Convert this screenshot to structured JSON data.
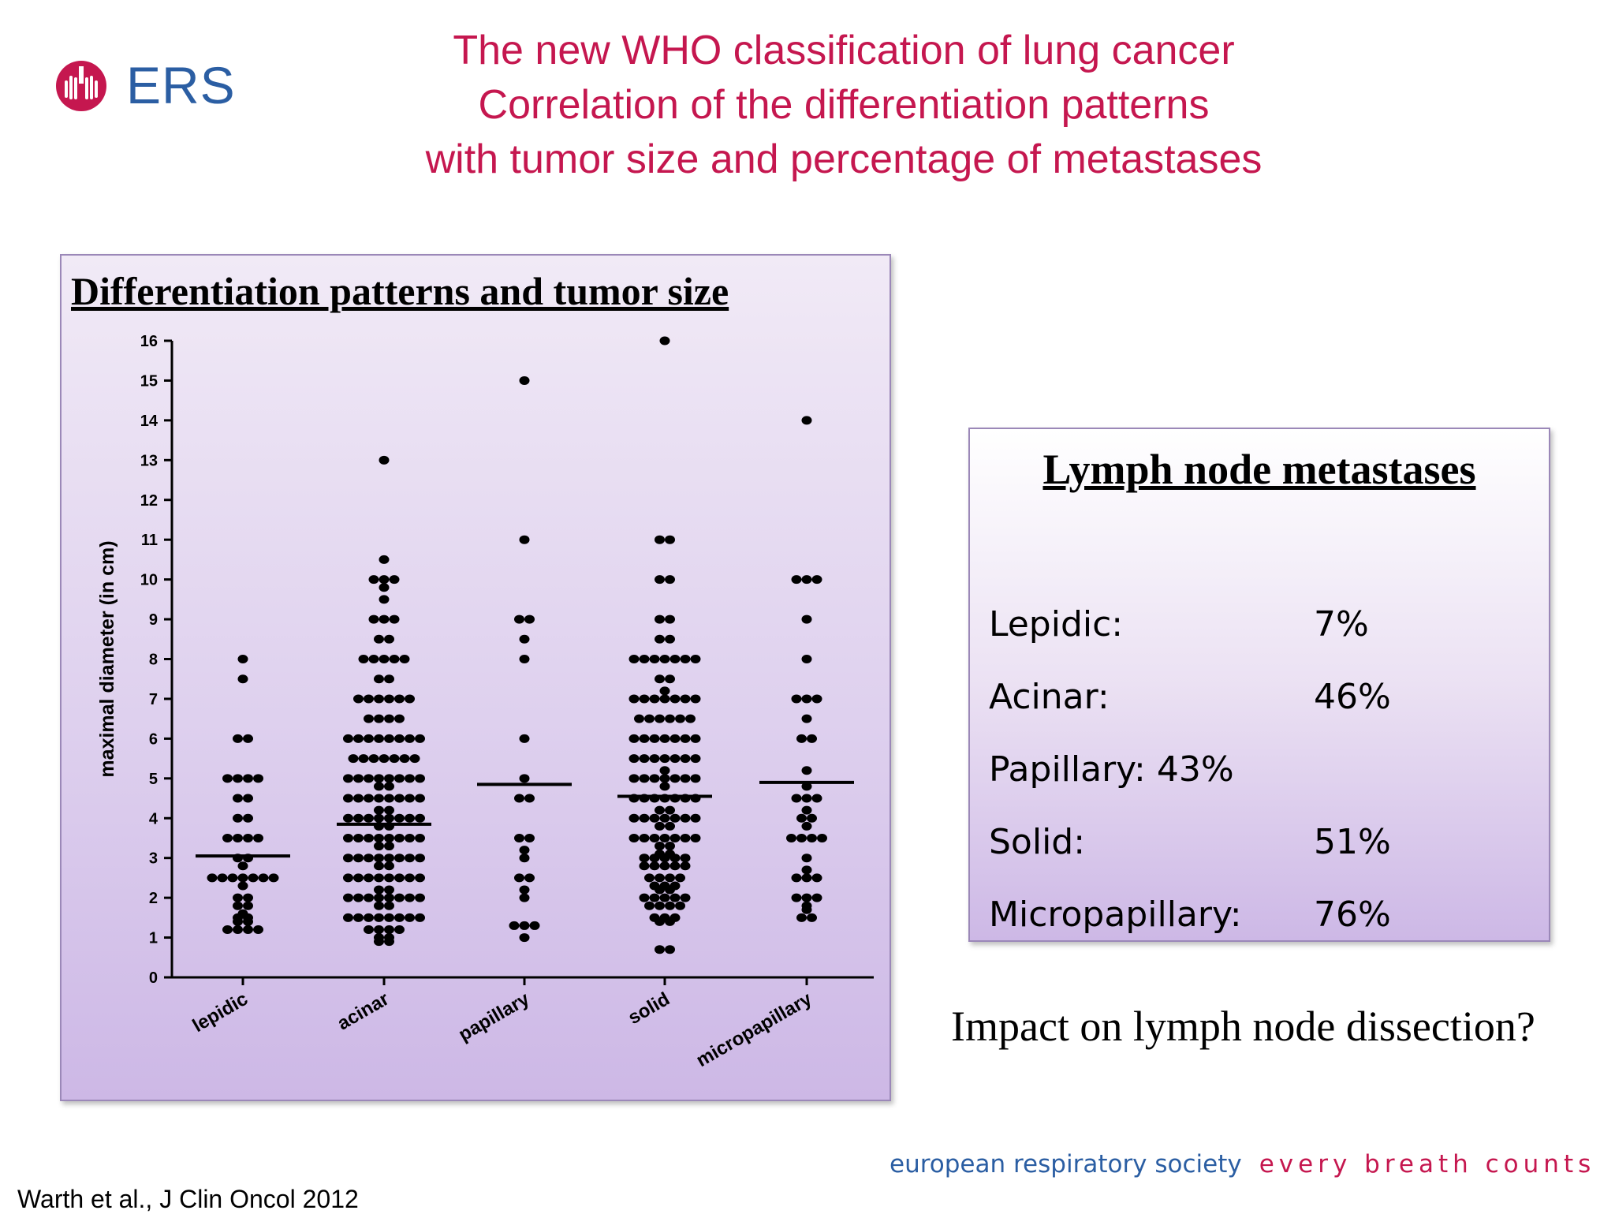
{
  "logo": {
    "text": "ERS",
    "mark_color": "#c5174f",
    "text_color": "#2b5ea3",
    "icon": "lungs-icon"
  },
  "title_lines": [
    "The new WHO classification of lung cancer",
    "Correlation of the differentiation patterns",
    "with tumor size and percentage of metastases"
  ],
  "colors": {
    "title": "#c5174f",
    "society": "#2b5ea3",
    "slogan": "#c5174f"
  },
  "chart_panel": {
    "heading": "Differentiation patterns and tumor size"
  },
  "chart_data": {
    "type": "scatter",
    "title": "",
    "xlabel": "",
    "ylabel": "maximal diameter (in cm)",
    "ylim": [
      0,
      16
    ],
    "yticks": [
      "0",
      "1",
      "2",
      "3",
      "4",
      "5",
      "6",
      "7",
      "8",
      "9",
      "10",
      "11",
      "12",
      "13",
      "14",
      "15",
      "16"
    ],
    "categories": [
      "lepidic",
      "acinar",
      "papillary",
      "solid",
      "micropapillary"
    ],
    "medians": [
      3.05,
      3.85,
      4.85,
      4.55,
      4.9
    ],
    "series": [
      {
        "category": "lepidic",
        "values": [
          8,
          7.5,
          6,
          6,
          5,
          5,
          5,
          5,
          4.5,
          4.5,
          4,
          4,
          3.5,
          3.5,
          3.5,
          3.5,
          3,
          3,
          2.8,
          2.5,
          2.5,
          2.5,
          2.5,
          2.5,
          2.5,
          2.5,
          2.3,
          2,
          2,
          1.8,
          1.8,
          1.6,
          1.5,
          1.5,
          1.4,
          1.4,
          1.2,
          1.2,
          1.2,
          1.2
        ]
      },
      {
        "category": "acinar",
        "values": [
          13,
          10.5,
          10,
          10,
          10,
          9.8,
          9.5,
          9,
          9,
          9,
          8.5,
          8.5,
          8,
          8,
          8,
          8,
          8,
          7.5,
          7.5,
          7,
          7,
          7,
          7,
          7,
          7,
          6.5,
          6.5,
          6.5,
          6.5,
          6,
          6,
          6,
          6,
          6,
          6,
          6,
          6,
          5.5,
          5.5,
          5.5,
          5.5,
          5.5,
          5.5,
          5.5,
          5,
          5,
          5,
          5,
          5,
          5,
          5,
          5,
          4.8,
          4.8,
          4.5,
          4.5,
          4.5,
          4.5,
          4.5,
          4.5,
          4.5,
          4.5,
          4.2,
          4.2,
          4,
          4,
          4,
          4,
          4,
          4,
          4,
          4,
          3.8,
          3.8,
          3.5,
          3.5,
          3.5,
          3.5,
          3.5,
          3.5,
          3.5,
          3.5,
          3.3,
          3.3,
          3,
          3,
          3,
          3,
          3,
          3,
          3,
          3,
          2.8,
          2.8,
          2.5,
          2.5,
          2.5,
          2.5,
          2.5,
          2.5,
          2.5,
          2.5,
          2.2,
          2.2,
          2,
          2,
          2,
          2,
          2,
          2,
          2,
          2,
          1.8,
          1.8,
          1.5,
          1.5,
          1.5,
          1.5,
          1.5,
          1.5,
          1.5,
          1.5,
          1.2,
          1.2,
          1.2,
          1.2,
          1,
          1,
          0.9,
          0.9
        ]
      },
      {
        "category": "papillary",
        "values": [
          15,
          11,
          9,
          9,
          8.5,
          8,
          6,
          5,
          4.5,
          4.5,
          3.5,
          3.5,
          3.2,
          3,
          2.5,
          2.5,
          2.2,
          2,
          1.3,
          1.3,
          1.3,
          1
        ]
      },
      {
        "category": "solid",
        "values": [
          16,
          11,
          11,
          10,
          10,
          9,
          9,
          8.5,
          8.5,
          8,
          8,
          8,
          8,
          8,
          8,
          8,
          7.5,
          7.5,
          7.2,
          7,
          7,
          7,
          7,
          7,
          7,
          7,
          6.5,
          6.5,
          6.5,
          6.5,
          6.5,
          6.5,
          6,
          6,
          6,
          6,
          6,
          6,
          6,
          5.5,
          5.5,
          5.5,
          5.5,
          5.5,
          5.5,
          5.5,
          5.2,
          5,
          5,
          5,
          5,
          5,
          5,
          5,
          4.8,
          4.5,
          4.5,
          4.5,
          4.5,
          4.5,
          4.5,
          4.5,
          4.2,
          4.2,
          4,
          4,
          4,
          4,
          4,
          4,
          4,
          3.8,
          3.8,
          3.5,
          3.5,
          3.5,
          3.5,
          3.5,
          3.5,
          3.5,
          3.3,
          3.3,
          3.1,
          3.1,
          3,
          3,
          3,
          3,
          3,
          2.8,
          2.8,
          2.8,
          2.8,
          2.8,
          2.5,
          2.5,
          2.5,
          2.5,
          2.3,
          2.3,
          2.3,
          2.2,
          2.2,
          2,
          2,
          2,
          2,
          2,
          1.8,
          1.8,
          1.8,
          1.8,
          1.5,
          1.5,
          1.5,
          1.4,
          1.4,
          0.7,
          0.7
        ]
      },
      {
        "category": "micropapillary",
        "values": [
          14,
          10,
          10,
          10,
          9,
          8,
          7,
          7,
          7,
          6.5,
          6,
          6,
          5.2,
          4.8,
          4.5,
          4.5,
          4.5,
          4.2,
          4,
          4,
          3.8,
          3.5,
          3.5,
          3.5,
          3.5,
          3,
          2.7,
          2.5,
          2.5,
          2.5,
          2,
          2,
          2,
          1.8,
          1.7,
          1.5,
          1.5
        ]
      }
    ]
  },
  "lymph_panel": {
    "heading": "Lymph node metastases",
    "rows": [
      {
        "label": "Lepidic:",
        "value": " 7%"
      },
      {
        "label": "Acinar:",
        "value": "46%"
      },
      {
        "label": "Papillary: 43%",
        "value": ""
      },
      {
        "label": "Solid:",
        "value": "51%"
      },
      {
        "label": "Micropapillary:",
        "value": "76%"
      }
    ]
  },
  "impact_text": "Impact on lymph node dissection?",
  "citation": "Warth  et al., J Clin Oncol 2012",
  "footer": {
    "society": "european respiratory society",
    "slogan": "every breath counts"
  }
}
